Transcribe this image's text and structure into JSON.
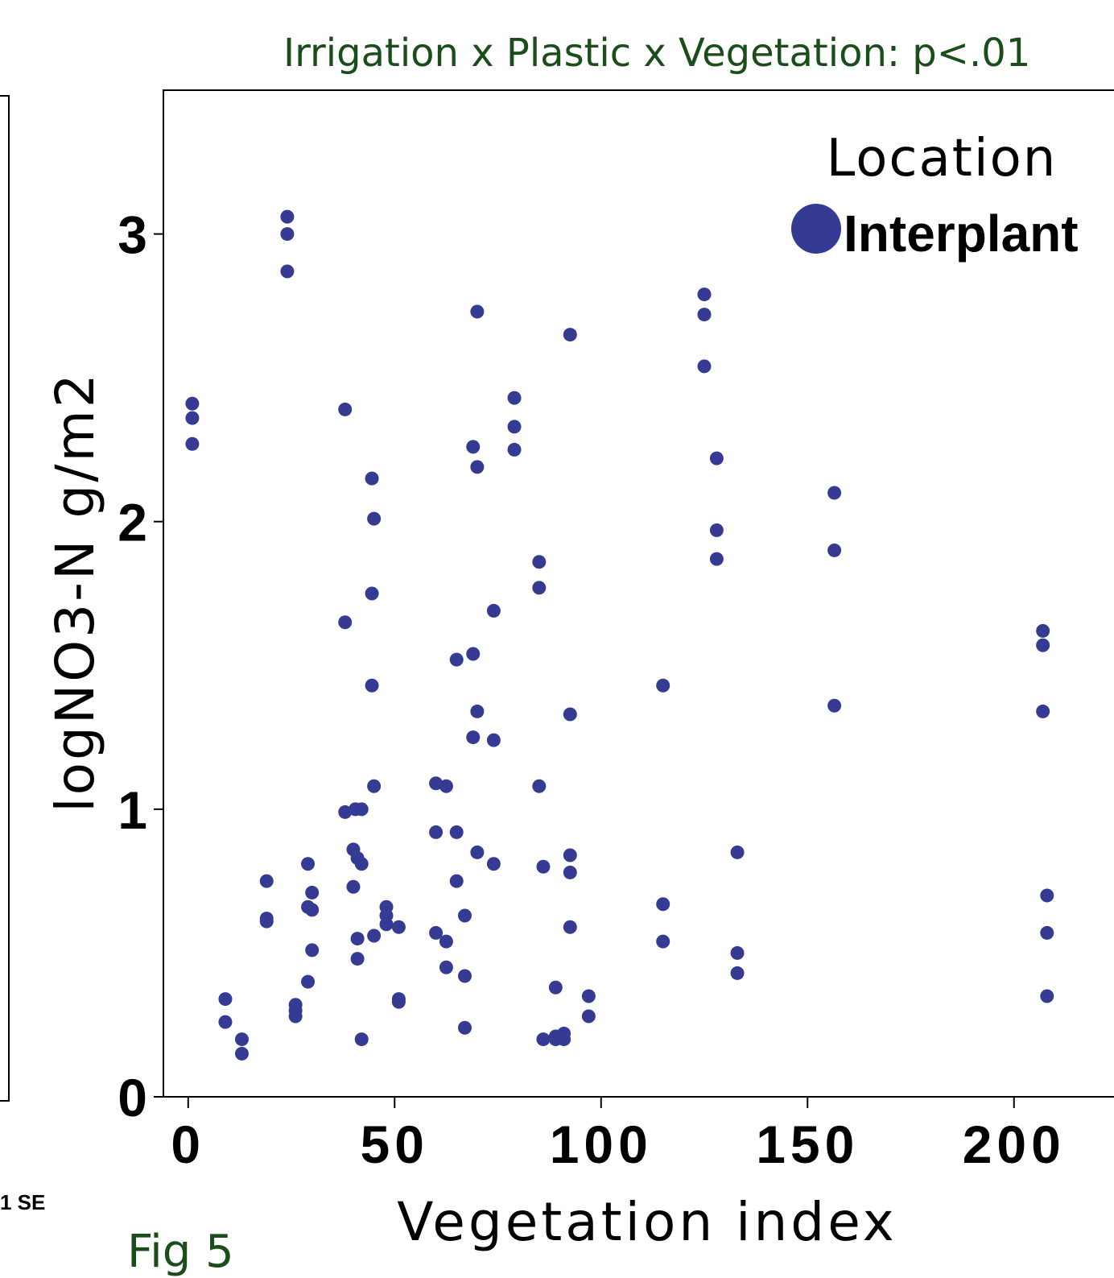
{
  "title": "Irrigation x Plastic x Vegetation: p<.01",
  "se_note": "1 SE",
  "fig_label": "Fig 5",
  "colors": {
    "title_green": "#1b4d1b",
    "point": "#353b93",
    "axis": "#000000"
  },
  "chart_data": {
    "type": "scatter",
    "xlabel": "Vegetation index",
    "ylabel": "logNO3-N g/m2",
    "xlim": [
      -6,
      225
    ],
    "ylim": [
      0,
      3.5
    ],
    "x_ticks": [
      0,
      50,
      100,
      150,
      200
    ],
    "y_ticks": [
      0,
      1,
      2,
      3
    ],
    "legend": {
      "title": "Location",
      "position": "top-right",
      "entries": [
        {
          "label": "Interplant",
          "color": "#353b93"
        }
      ]
    },
    "series": [
      {
        "name": "Interplant",
        "color": "#353b93",
        "points": [
          [
            1,
            2.41
          ],
          [
            1,
            2.36
          ],
          [
            1,
            2.27
          ],
          [
            9,
            0.34
          ],
          [
            9,
            0.26
          ],
          [
            13,
            0.2
          ],
          [
            13,
            0.15
          ],
          [
            19,
            0.75
          ],
          [
            19,
            0.62
          ],
          [
            19,
            0.61
          ],
          [
            24,
            3.06
          ],
          [
            24,
            3.0
          ],
          [
            24,
            2.87
          ],
          [
            26,
            0.32
          ],
          [
            26,
            0.3
          ],
          [
            26,
            0.28
          ],
          [
            29,
            0.81
          ],
          [
            29,
            0.66
          ],
          [
            29,
            0.4
          ],
          [
            30,
            0.71
          ],
          [
            30,
            0.65
          ],
          [
            30,
            0.51
          ],
          [
            38,
            2.39
          ],
          [
            38,
            1.65
          ],
          [
            38,
            0.99
          ],
          [
            40,
            0.86
          ],
          [
            40,
            0.73
          ],
          [
            40.5,
            1.0
          ],
          [
            41,
            0.83
          ],
          [
            41,
            0.55
          ],
          [
            41,
            0.48
          ],
          [
            42,
            1.0
          ],
          [
            42,
            0.81
          ],
          [
            42,
            0.2
          ],
          [
            44.5,
            2.15
          ],
          [
            44.5,
            1.75
          ],
          [
            44.5,
            1.43
          ],
          [
            45,
            2.01
          ],
          [
            45,
            1.08
          ],
          [
            45,
            0.56
          ],
          [
            48,
            0.66
          ],
          [
            48,
            0.63
          ],
          [
            48,
            0.6
          ],
          [
            51,
            0.59
          ],
          [
            51,
            0.34
          ],
          [
            51,
            0.33
          ],
          [
            60,
            1.09
          ],
          [
            60,
            0.92
          ],
          [
            60,
            0.57
          ],
          [
            62.5,
            1.08
          ],
          [
            62.5,
            0.54
          ],
          [
            62.5,
            0.45
          ],
          [
            65,
            1.52
          ],
          [
            65,
            0.92
          ],
          [
            65,
            0.75
          ],
          [
            67,
            0.63
          ],
          [
            67,
            0.42
          ],
          [
            67,
            0.24
          ],
          [
            69,
            2.26
          ],
          [
            69,
            1.54
          ],
          [
            69,
            1.25
          ],
          [
            70,
            2.73
          ],
          [
            70,
            2.19
          ],
          [
            70,
            1.34
          ],
          [
            70,
            0.85
          ],
          [
            74,
            1.69
          ],
          [
            74,
            1.24
          ],
          [
            74,
            0.81
          ],
          [
            79,
            2.43
          ],
          [
            79,
            2.33
          ],
          [
            79,
            2.25
          ],
          [
            85,
            1.86
          ],
          [
            85,
            1.77
          ],
          [
            85,
            1.08
          ],
          [
            86,
            0.8
          ],
          [
            86,
            0.2
          ],
          [
            89,
            0.38
          ],
          [
            89,
            0.21
          ],
          [
            89,
            0.2
          ],
          [
            91,
            0.22
          ],
          [
            91,
            0.2
          ],
          [
            92.5,
            2.65
          ],
          [
            92.5,
            1.33
          ],
          [
            92.5,
            0.84
          ],
          [
            92.5,
            0.78
          ],
          [
            92.5,
            0.59
          ],
          [
            97,
            0.35
          ],
          [
            97,
            0.28
          ],
          [
            115,
            1.43
          ],
          [
            115,
            0.67
          ],
          [
            115,
            0.54
          ],
          [
            125,
            2.79
          ],
          [
            125,
            2.72
          ],
          [
            125,
            2.54
          ],
          [
            128,
            2.22
          ],
          [
            128,
            1.97
          ],
          [
            128,
            1.87
          ],
          [
            133,
            0.85
          ],
          [
            133,
            0.5
          ],
          [
            133,
            0.43
          ],
          [
            156.5,
            2.1
          ],
          [
            156.5,
            1.9
          ],
          [
            156.5,
            1.36
          ],
          [
            207,
            1.62
          ],
          [
            207,
            1.57
          ],
          [
            207,
            1.34
          ],
          [
            208,
            0.7
          ],
          [
            208,
            0.57
          ],
          [
            208,
            0.35
          ]
        ]
      }
    ]
  }
}
